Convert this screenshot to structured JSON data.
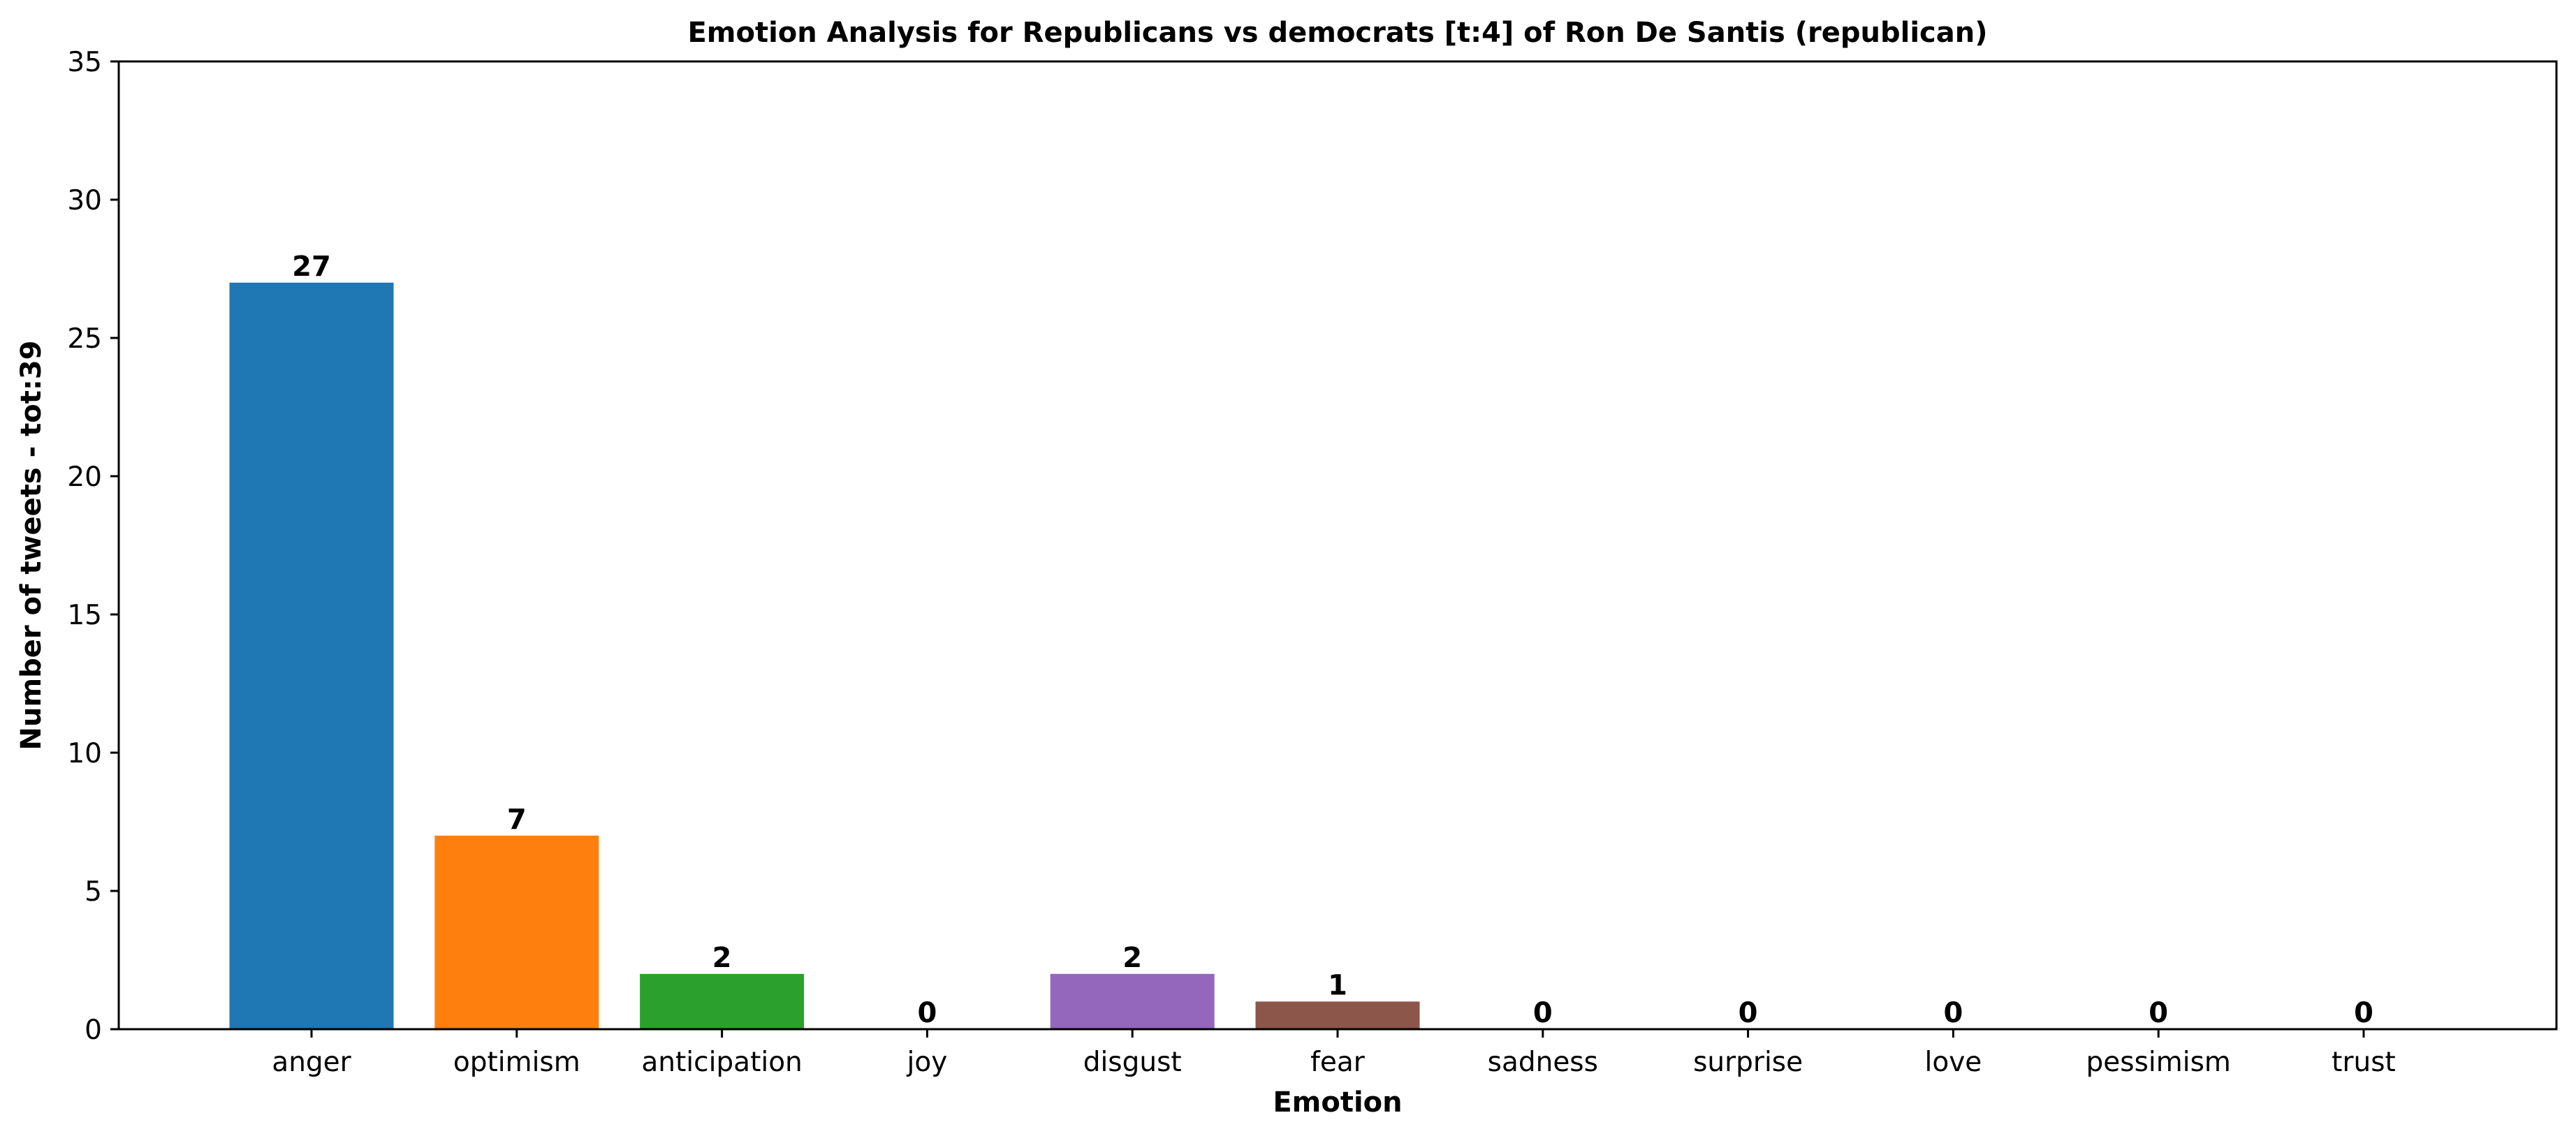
{
  "chart_data": {
    "type": "bar",
    "title": "Emotion Analysis for Republicans vs democrats [t:4] of Ron De Santis (republican)",
    "xlabel": "Emotion",
    "ylabel": "Number of tweets - tot:39",
    "categories": [
      "anger",
      "optimism",
      "anticipation",
      "joy",
      "disgust",
      "fear",
      "sadness",
      "surprise",
      "love",
      "pessimism",
      "trust"
    ],
    "values": [
      27,
      7,
      2,
      0,
      2,
      1,
      0,
      0,
      0,
      0,
      0
    ],
    "data_labels": [
      "27",
      "7",
      "2",
      "0",
      "2",
      "1",
      "0",
      "0",
      "0",
      "0",
      "0"
    ],
    "colors": [
      "#1f77b4",
      "#ff7f0e",
      "#2ca02c",
      "#d62728",
      "#9467bd",
      "#8c564b",
      "#e377c2",
      "#7f7f7f",
      "#bcbd22",
      "#17becf",
      "#1f77b4"
    ],
    "ylim": [
      0,
      35
    ],
    "yticks": [
      0,
      5,
      10,
      15,
      20,
      25,
      30,
      35
    ],
    "grid": false,
    "legend": "none"
  }
}
